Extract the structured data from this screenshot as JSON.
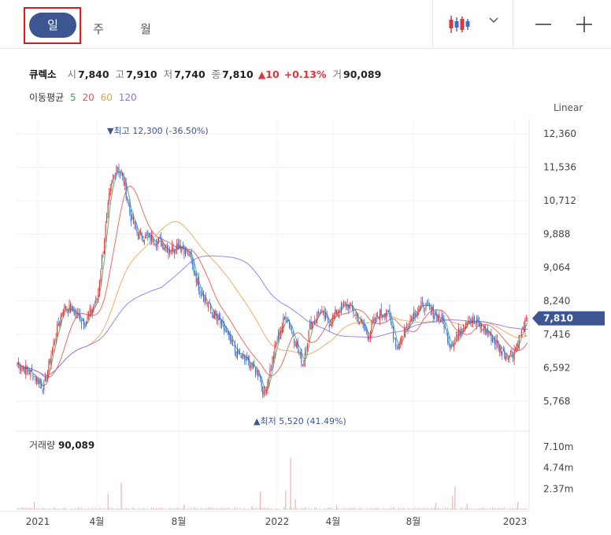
{
  "toolbar": {
    "periods": [
      "일",
      "주",
      "월"
    ],
    "selected_period": "일",
    "chart_type_icon": "candlestick-icon",
    "dropdown_icon": "chevron-down-icon",
    "zoom_out_icon": "minus-icon",
    "zoom_in_icon": "plus-icon"
  },
  "quote": {
    "name": "큐렉소",
    "open_label": "시",
    "open": "7,840",
    "high_label": "고",
    "high": "7,910",
    "low_label": "저",
    "low": "7,740",
    "close_label": "종",
    "close": "7,810",
    "change": "▲10",
    "change_pct": "+0.13%",
    "volume_label": "거",
    "volume": "90,089"
  },
  "moving_average": {
    "label": "이동평균",
    "periods": [
      "5",
      "20",
      "60",
      "120"
    ],
    "colors": [
      "#3fa34d",
      "#e5544b",
      "#e8a04c",
      "#8e6cf0"
    ]
  },
  "scale_button": "Linear",
  "volume_panel": {
    "label": "거래량",
    "value": "90,089"
  },
  "colors": {
    "up": "#d9363e",
    "down": "#3a6fd1",
    "accent": "#3d5692",
    "ma5": "#3fa34d",
    "ma20": "#e5544b",
    "ma60": "#e8a04c",
    "ma120": "#8e6cf0"
  },
  "chart_data": {
    "type": "candlestick",
    "price_axis_ticks": [
      12360,
      11536,
      10712,
      9888,
      9064,
      8240,
      7416,
      6592,
      5768
    ],
    "price_axis_labels": [
      "12,360",
      "11,536",
      "10,712",
      "9,888",
      "9,064",
      "8,240",
      "7,416",
      "6,592",
      "5,768"
    ],
    "ylim": [
      5520,
      12700
    ],
    "x_axis_labels": [
      "2021",
      "4월",
      "8월",
      "2022",
      "4월",
      "8월",
      "2023"
    ],
    "current_price": 7810,
    "current_price_label": "7,810",
    "high_marker": {
      "label": "최고",
      "price": 12300,
      "price_label": "12,300",
      "pct": "(-36.50%)"
    },
    "low_marker": {
      "label": "최저",
      "price": 5520,
      "price_label": "5,520",
      "pct": "(41.49%)"
    },
    "close_series_anchors": [
      [
        0,
        6700
      ],
      [
        12,
        6450
      ],
      [
        22,
        6100
      ],
      [
        30,
        7200
      ],
      [
        38,
        8100
      ],
      [
        46,
        8000
      ],
      [
        56,
        7700
      ],
      [
        66,
        8300
      ],
      [
        76,
        10800
      ],
      [
        82,
        11600
      ],
      [
        88,
        11200
      ],
      [
        94,
        10300
      ],
      [
        100,
        9850
      ],
      [
        110,
        9800
      ],
      [
        118,
        9700
      ],
      [
        126,
        9500
      ],
      [
        134,
        9650
      ],
      [
        142,
        9400
      ],
      [
        150,
        8600
      ],
      [
        160,
        8000
      ],
      [
        170,
        7600
      ],
      [
        180,
        7000
      ],
      [
        192,
        6700
      ],
      [
        200,
        6450
      ],
      [
        204,
        5900
      ],
      [
        208,
        6400
      ],
      [
        214,
        7200
      ],
      [
        222,
        7900
      ],
      [
        230,
        7250
      ],
      [
        236,
        6700
      ],
      [
        242,
        7600
      ],
      [
        250,
        8000
      ],
      [
        258,
        7700
      ],
      [
        266,
        8050
      ],
      [
        274,
        8150
      ],
      [
        282,
        7800
      ],
      [
        290,
        7400
      ],
      [
        298,
        7900
      ],
      [
        306,
        8000
      ],
      [
        314,
        7100
      ],
      [
        320,
        7500
      ],
      [
        328,
        7950
      ],
      [
        336,
        8150
      ],
      [
        344,
        7950
      ],
      [
        352,
        7750
      ],
      [
        358,
        7150
      ],
      [
        364,
        7400
      ],
      [
        372,
        7800
      ],
      [
        380,
        7700
      ],
      [
        388,
        7500
      ],
      [
        396,
        7200
      ],
      [
        404,
        6900
      ],
      [
        410,
        6950
      ],
      [
        416,
        7400
      ],
      [
        422,
        7810
      ]
    ],
    "volume_axis_labels": [
      "7.10m",
      "4.74m",
      "2.37m"
    ],
    "volume_max_m": 7.8,
    "volume_spikes": [
      [
        14,
        0.9
      ],
      [
        75,
        1.8
      ],
      [
        86,
        3.0
      ],
      [
        138,
        0.6
      ],
      [
        194,
        0.4
      ],
      [
        201,
        2.0
      ],
      [
        222,
        2.2
      ],
      [
        226,
        5.9
      ],
      [
        230,
        1.2
      ],
      [
        264,
        0.5
      ],
      [
        346,
        0.8
      ],
      [
        360,
        1.6
      ],
      [
        362,
        2.6
      ],
      [
        372,
        0.7
      ],
      [
        414,
        0.9
      ]
    ]
  }
}
